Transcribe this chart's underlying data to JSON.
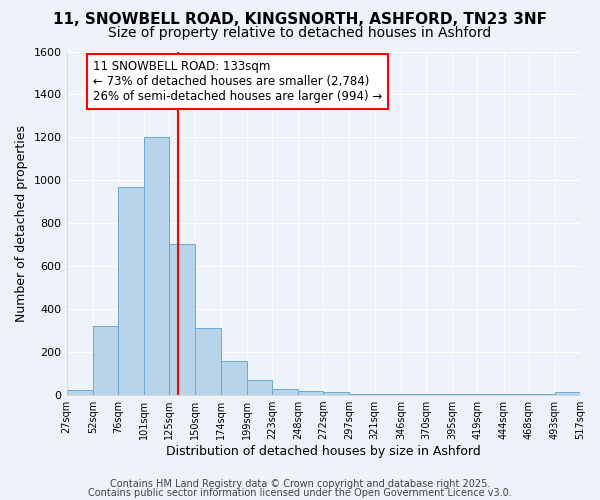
{
  "title_line1": "11, SNOWBELL ROAD, KINGSNORTH, ASHFORD, TN23 3NF",
  "title_line2": "Size of property relative to detached houses in Ashford",
  "xlabel": "Distribution of detached houses by size in Ashford",
  "ylabel": "Number of detached properties",
  "bar_values": [
    20,
    320,
    970,
    1200,
    700,
    310,
    155,
    70,
    25,
    15,
    10,
    5,
    5,
    5,
    5,
    5,
    5,
    5,
    5,
    10
  ],
  "bin_edges": [
    27,
    52,
    76,
    101,
    125,
    150,
    174,
    199,
    223,
    248,
    272,
    297,
    321,
    346,
    370,
    395,
    419,
    444,
    468,
    493,
    517
  ],
  "x_tick_labels": [
    "27sqm",
    "52sqm",
    "76sqm",
    "101sqm",
    "125sqm",
    "150sqm",
    "174sqm",
    "199sqm",
    "223sqm",
    "248sqm",
    "272sqm",
    "297sqm",
    "321sqm",
    "346sqm",
    "370sqm",
    "395sqm",
    "419sqm",
    "444sqm",
    "468sqm",
    "493sqm",
    "517sqm"
  ],
  "bar_color": "#b8d4ea",
  "bar_edge_color": "#6aaad4",
  "red_line_x": 133,
  "annotation_title": "11 SNOWBELL ROAD: 133sqm",
  "annotation_line2": "← 73% of detached houses are smaller (2,784)",
  "annotation_line3": "26% of semi-detached houses are larger (994) →",
  "ylim": [
    0,
    1600
  ],
  "yticks": [
    0,
    200,
    400,
    600,
    800,
    1000,
    1200,
    1400,
    1600
  ],
  "footer_line1": "Contains HM Land Registry data © Crown copyright and database right 2025.",
  "footer_line2": "Contains public sector information licensed under the Open Government Licence v3.0.",
  "bg_color": "#eef2fa",
  "plot_bg_color": "#eef2fa",
  "grid_color": "#ffffff",
  "title1_fontsize": 11,
  "title2_fontsize": 10,
  "annotation_fontsize": 8.5,
  "axis_label_fontsize": 9,
  "tick_fontsize": 8,
  "footer_fontsize": 7
}
